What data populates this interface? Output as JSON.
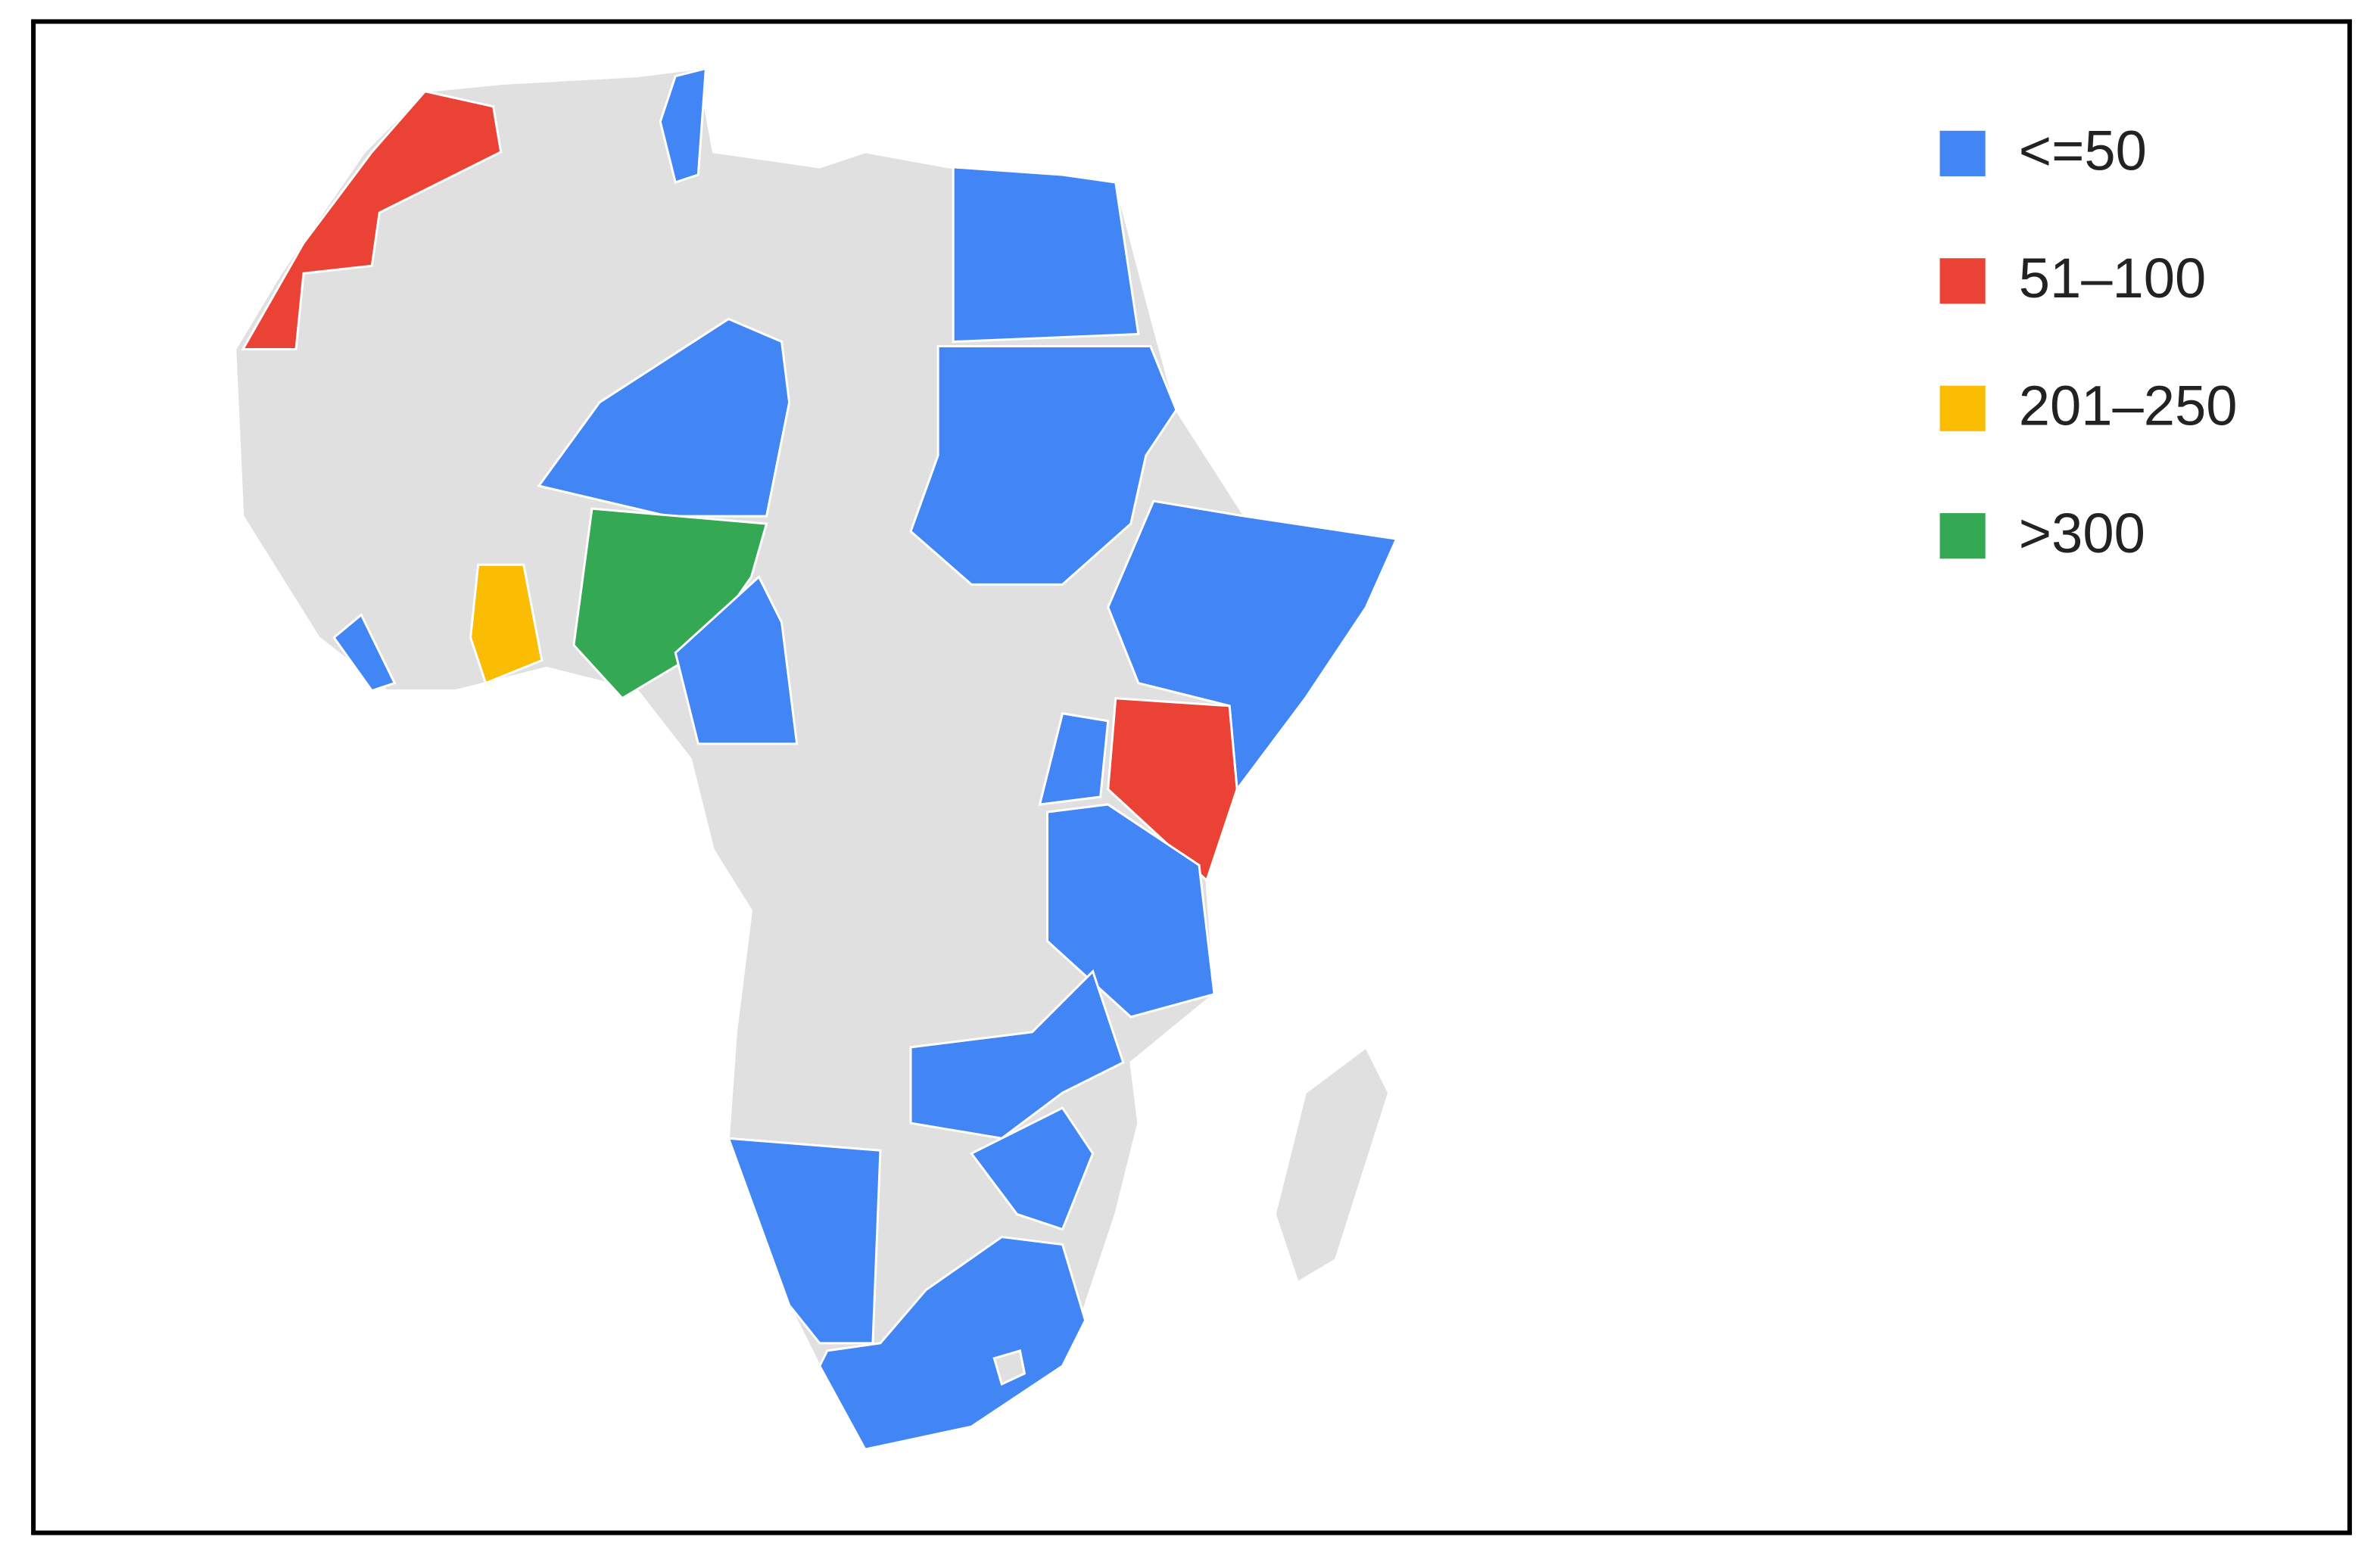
{
  "legend": {
    "items": [
      {
        "label": "<=50",
        "color": "#4285f4"
      },
      {
        "label": "51–100",
        "color": "#ea4335"
      },
      {
        "label": "201–250",
        "color": "#fbbc04"
      },
      {
        "label": ">300",
        "color": "#34a853"
      }
    ]
  }
}
